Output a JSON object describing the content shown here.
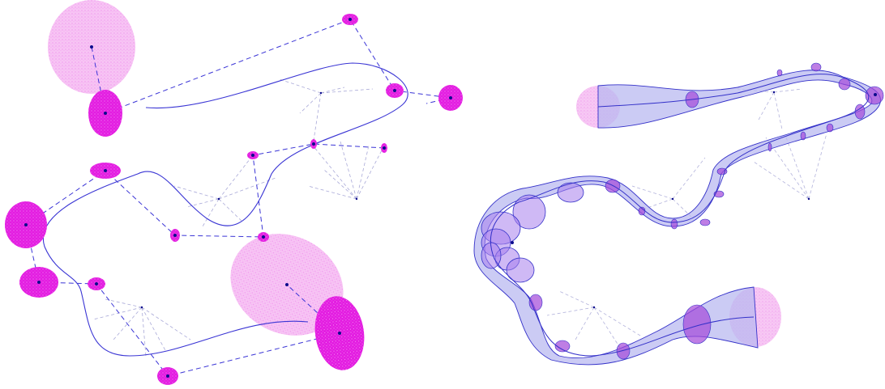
{
  "colors": {
    "control_blob": "#e31ce1",
    "large_blob": "#f07ef0",
    "pale_blob": "#f3b4ef",
    "curve": "#3a35d4",
    "control_polygon": "#3b35d6",
    "construction_lines": "#a9a9d8",
    "tube_fill": "#b9b9f0",
    "tube_outline": "#3431c9",
    "tube_section": "#a347d8",
    "point": "#0b0b8c"
  },
  "panels": {
    "left": {
      "kind": "control-polygon-with-uncertainty-ellipses"
    },
    "right": {
      "kind": "uncertainty-tube-around-curve"
    }
  }
}
